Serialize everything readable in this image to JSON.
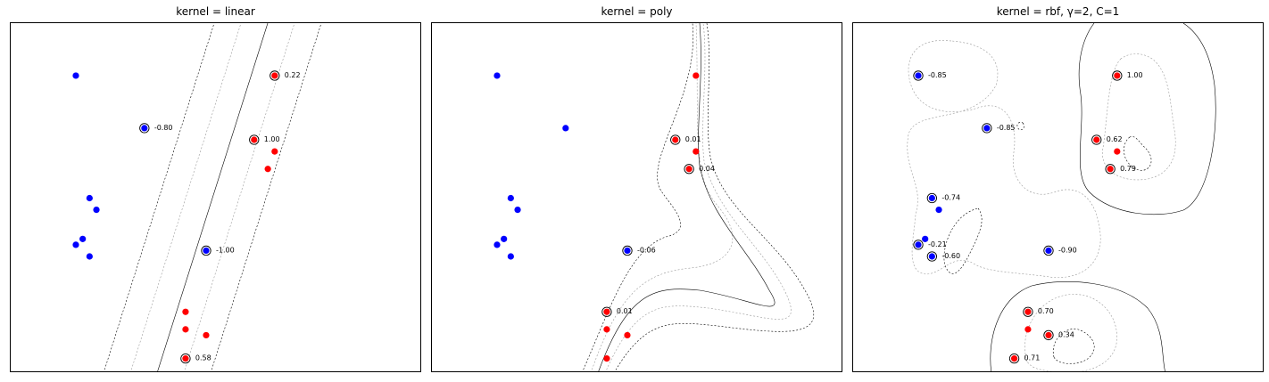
{
  "chart_data": [
    {
      "type": "scatter",
      "title": "kernel = linear",
      "xlim": [
        -3,
        3
      ],
      "ylim": [
        -3,
        3
      ],
      "grid": false,
      "points": [
        {
          "x": -2.05,
          "y": 2.1,
          "cls": 0
        },
        {
          "x": -1.05,
          "y": 1.2,
          "cls": 0,
          "sv": true,
          "label": "-0.80"
        },
        {
          "x": -1.85,
          "y": 0.0,
          "cls": 0
        },
        {
          "x": -1.75,
          "y": -0.2,
          "cls": 0
        },
        {
          "x": -2.05,
          "y": -0.8,
          "cls": 0
        },
        {
          "x": -1.95,
          "y": -0.7,
          "cls": 0
        },
        {
          "x": -1.85,
          "y": -1.0,
          "cls": 0
        },
        {
          "x": -0.15,
          "y": -0.9,
          "cls": 0,
          "sv": true,
          "label": "-1.00"
        },
        {
          "x": 0.85,
          "y": 2.1,
          "cls": 1,
          "sv": true,
          "label": "0.22"
        },
        {
          "x": 0.55,
          "y": 1.0,
          "cls": 1,
          "sv": true,
          "label": "1.00"
        },
        {
          "x": 0.85,
          "y": 0.8,
          "cls": 1
        },
        {
          "x": 0.75,
          "y": 0.5,
          "cls": 1
        },
        {
          "x": -0.45,
          "y": -1.95,
          "cls": 1
        },
        {
          "x": -0.45,
          "y": -2.25,
          "cls": 1
        },
        {
          "x": -0.15,
          "y": -2.35,
          "cls": 1
        },
        {
          "x": -0.45,
          "y": -2.75,
          "cls": 1,
          "sv": true,
          "label": "0.58"
        }
      ]
    },
    {
      "type": "scatter",
      "title": "kernel = poly",
      "xlim": [
        -3,
        3
      ],
      "ylim": [
        -3,
        3
      ],
      "grid": false,
      "points": [
        {
          "x": -2.05,
          "y": 2.1,
          "cls": 0
        },
        {
          "x": -1.05,
          "y": 1.2,
          "cls": 0
        },
        {
          "x": -1.85,
          "y": 0.0,
          "cls": 0
        },
        {
          "x": -1.75,
          "y": -0.2,
          "cls": 0
        },
        {
          "x": -2.05,
          "y": -0.8,
          "cls": 0
        },
        {
          "x": -1.95,
          "y": -0.7,
          "cls": 0
        },
        {
          "x": -1.85,
          "y": -1.0,
          "cls": 0
        },
        {
          "x": -0.15,
          "y": -0.9,
          "cls": 0,
          "sv": true,
          "label": "-0.06"
        },
        {
          "x": 0.85,
          "y": 2.1,
          "cls": 1
        },
        {
          "x": 0.55,
          "y": 1.0,
          "cls": 1,
          "sv": true,
          "label": "0.01"
        },
        {
          "x": 0.85,
          "y": 0.8,
          "cls": 1
        },
        {
          "x": 0.75,
          "y": 0.5,
          "cls": 1,
          "sv": true,
          "label": "0.04"
        },
        {
          "x": -0.45,
          "y": -1.95,
          "cls": 1,
          "sv": true,
          "label": "0.01"
        },
        {
          "x": -0.45,
          "y": -2.25,
          "cls": 1
        },
        {
          "x": -0.15,
          "y": -2.35,
          "cls": 1
        },
        {
          "x": -0.45,
          "y": -2.75,
          "cls": 1
        }
      ]
    },
    {
      "type": "scatter",
      "title": "kernel = rbf, γ=2, C=1",
      "xlim": [
        -3,
        3
      ],
      "ylim": [
        -3,
        3
      ],
      "grid": false,
      "points": [
        {
          "x": -2.05,
          "y": 2.1,
          "cls": 0,
          "sv": true,
          "label": "-0.85"
        },
        {
          "x": -1.05,
          "y": 1.2,
          "cls": 0,
          "sv": true,
          "label": "-0.85"
        },
        {
          "x": -1.85,
          "y": 0.0,
          "cls": 0,
          "sv": true,
          "label": "-0.74"
        },
        {
          "x": -1.75,
          "y": -0.2,
          "cls": 0
        },
        {
          "x": -2.05,
          "y": -0.8,
          "cls": 0,
          "sv": true,
          "label": "-0.21"
        },
        {
          "x": -1.95,
          "y": -0.7,
          "cls": 0
        },
        {
          "x": -1.85,
          "y": -1.0,
          "cls": 0,
          "sv": true,
          "label": "-0.60"
        },
        {
          "x": -0.15,
          "y": -0.9,
          "cls": 0,
          "sv": true,
          "label": "-0.90"
        },
        {
          "x": 0.85,
          "y": 2.1,
          "cls": 1,
          "sv": true,
          "label": "1.00"
        },
        {
          "x": 0.55,
          "y": 1.0,
          "cls": 1,
          "sv": true,
          "label": "0.62"
        },
        {
          "x": 0.85,
          "y": 0.8,
          "cls": 1
        },
        {
          "x": 0.75,
          "y": 0.5,
          "cls": 1,
          "sv": true,
          "label": "0.79"
        },
        {
          "x": -0.45,
          "y": -1.95,
          "cls": 1,
          "sv": true,
          "label": "0.70"
        },
        {
          "x": -0.45,
          "y": -2.25,
          "cls": 1
        },
        {
          "x": -0.15,
          "y": -2.35,
          "cls": 1,
          "sv": true,
          "label": "0.34"
        },
        {
          "x": -0.65,
          "y": -2.75,
          "cls": 1,
          "sv": true,
          "label": "0.71"
        }
      ]
    }
  ],
  "colors": {
    "class0": "#0000ff",
    "class1": "#ff0000",
    "decision_boundary": "#000000",
    "margin": "#000000",
    "inner_contour": "#999999"
  }
}
